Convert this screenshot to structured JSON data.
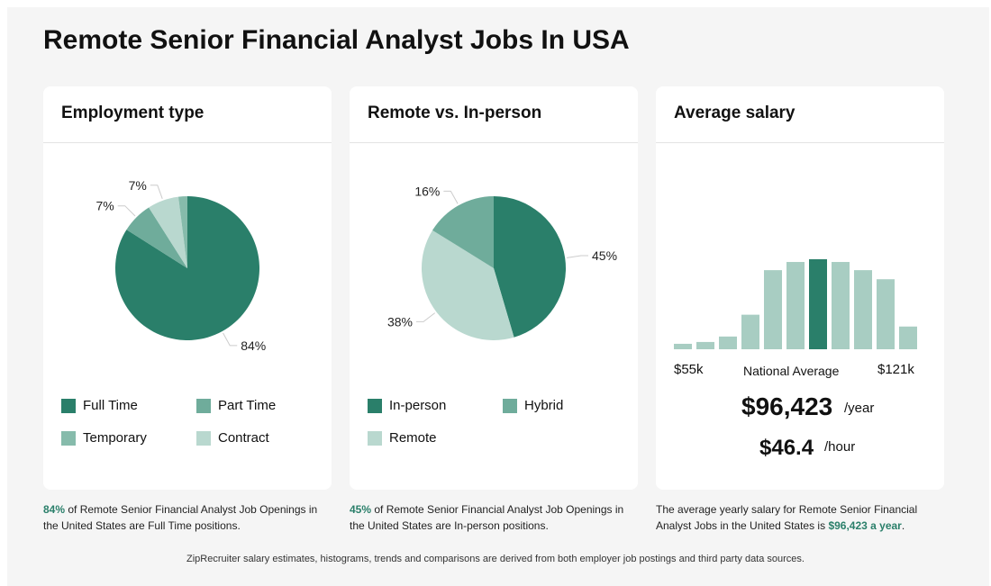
{
  "title": "Remote Senior Financial Analyst Jobs In USA",
  "colors": {
    "dark": "#2a7f6a",
    "mid": "#6fac9b",
    "temp": "#86bbab",
    "light": "#b9d8cf",
    "bar": "#a8cdc2"
  },
  "chart_data": [
    {
      "type": "pie",
      "title": "Employment type",
      "slices": [
        {
          "label": "Full Time",
          "value": 84,
          "data_label": "84%",
          "color": "#2a7f6a"
        },
        {
          "label": "Part Time",
          "value": 7,
          "data_label": "7%",
          "color": "#6fac9b"
        },
        {
          "label": "Contract",
          "value": 7,
          "data_label": "7%",
          "color": "#b9d8cf"
        },
        {
          "label": "Temporary",
          "value": 2,
          "data_label": "",
          "color": "#86bbab"
        }
      ],
      "legend": [
        {
          "label": "Full Time",
          "color": "#2a7f6a"
        },
        {
          "label": "Part Time",
          "color": "#6fac9b"
        },
        {
          "label": "Temporary",
          "color": "#86bbab"
        },
        {
          "label": "Contract",
          "color": "#b9d8cf"
        }
      ]
    },
    {
      "type": "pie",
      "title": "Remote vs. In-person",
      "slices": [
        {
          "label": "In-person",
          "value": 45,
          "data_label": "45%",
          "color": "#2a7f6a"
        },
        {
          "label": "Remote",
          "value": 38,
          "data_label": "38%",
          "color": "#b9d8cf"
        },
        {
          "label": "Hybrid",
          "value": 16,
          "data_label": "16%",
          "color": "#6fac9b"
        }
      ],
      "legend": [
        {
          "label": "In-person",
          "color": "#2a7f6a"
        },
        {
          "label": "Hybrid",
          "color": "#6fac9b"
        },
        {
          "label": "Remote",
          "color": "#b9d8cf"
        }
      ]
    },
    {
      "type": "bar",
      "title": "Average salary",
      "values": [
        6,
        8,
        14,
        38,
        87,
        96,
        99,
        96,
        87,
        77,
        25
      ],
      "highlight_index": 6,
      "min_label": "$55k",
      "max_label": "$121k",
      "center_label": "National Average"
    }
  ],
  "salary": {
    "yearly": "$96,423",
    "yearly_unit": "/year",
    "hourly": "$46.4",
    "hourly_unit": "/hour"
  },
  "captions": [
    {
      "highlight": "84%",
      "text": " of Remote Senior Financial Analyst Job Openings in the United States are Full Time positions."
    },
    {
      "highlight": "45%",
      "text": " of Remote Senior Financial Analyst Job Openings in the United States are In-person positions."
    },
    {
      "text": "The average yearly salary for Remote Senior Financial Analyst Jobs in the United States is ",
      "highlight": "$96,423 a year",
      "end": "."
    }
  ],
  "footer": "ZipRecruiter salary estimates, histograms, trends and comparisons are derived from both employer job postings and third party data sources."
}
